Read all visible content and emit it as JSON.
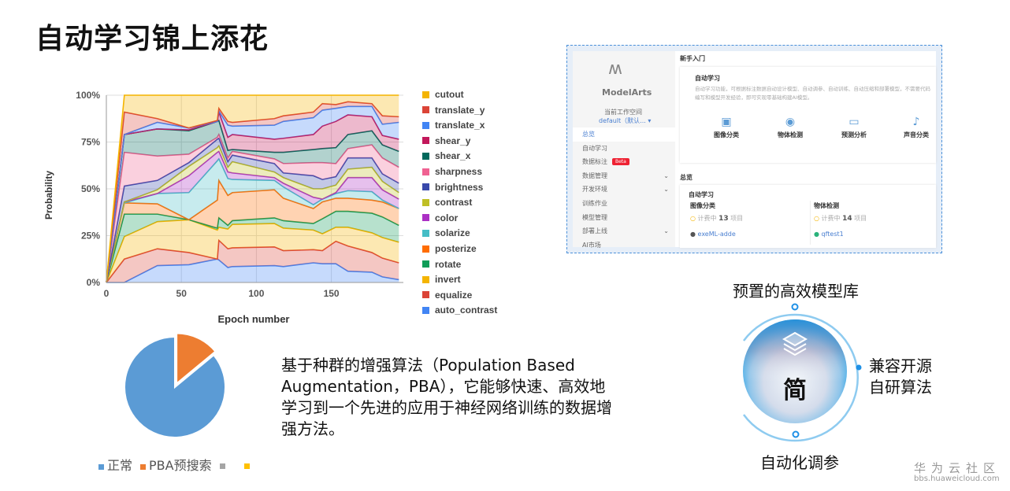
{
  "slide": {
    "title": "自动学习锦上添花"
  },
  "chart_data": {
    "type": "area",
    "stacked": true,
    "xlabel": "Epoch number",
    "ylabel": "Probability",
    "xlim": [
      0,
      198
    ],
    "ylim": [
      0,
      100
    ],
    "xticks": [
      "0",
      "50",
      "100",
      "150"
    ],
    "yticks": [
      "0%",
      "25%",
      "50%",
      "75%",
      "100%"
    ],
    "grid": true,
    "legend_position": "right",
    "x": [
      0,
      12,
      34,
      55,
      74,
      75,
      81,
      84,
      112,
      118,
      138,
      144,
      153,
      161,
      177,
      184,
      195
    ],
    "series": [
      {
        "name": "auto_contrast",
        "color": "#4285f4",
        "values": [
          0,
          0,
          9,
          9.5,
          12.5,
          12,
          8,
          8.5,
          9,
          8.5,
          10.5,
          10,
          10,
          6,
          5.5,
          3,
          1.5
        ]
      },
      {
        "name": "equalize",
        "color": "#db4437",
        "values": [
          0,
          12.5,
          9,
          6.5,
          0,
          10.5,
          10,
          10,
          10,
          8.5,
          7,
          7,
          12,
          13.5,
          10.5,
          10,
          9
        ]
      },
      {
        "name": "invert",
        "color": "#f4b400",
        "values": [
          0,
          12,
          14.5,
          17.5,
          15.5,
          7,
          10.5,
          12.5,
          12.5,
          12,
          10.5,
          9,
          7.5,
          10,
          10.5,
          11,
          11
        ]
      },
      {
        "name": "rotate",
        "color": "#0f9d58",
        "values": [
          0,
          12,
          4,
          0,
          1,
          5,
          2,
          2,
          3,
          4,
          3.5,
          8,
          8.5,
          8.5,
          10.5,
          11,
          9
        ]
      },
      {
        "name": "posterize",
        "color": "#ff6d00",
        "values": [
          0,
          6,
          5.5,
          0,
          15,
          20,
          16,
          15,
          15,
          12,
          8,
          9,
          7,
          7,
          7,
          8,
          9
        ]
      },
      {
        "name": "solarize",
        "color": "#46bdc6",
        "values": [
          0,
          0,
          5.5,
          14.5,
          21,
          11.5,
          9,
          7,
          5,
          6,
          2,
          1.5,
          2.5,
          4,
          4.5,
          1,
          0
        ]
      },
      {
        "name": "color",
        "color": "#ab30c4",
        "values": [
          0,
          0.5,
          0,
          9,
          4.5,
          4,
          3.5,
          3.5,
          1.5,
          2,
          4,
          0,
          0.5,
          7,
          7.5,
          5.5,
          5
        ]
      },
      {
        "name": "contrast",
        "color": "#bfbf26",
        "values": [
          0,
          0,
          2,
          5,
          2.5,
          3,
          2.5,
          6,
          3,
          3,
          4.5,
          5.5,
          4,
          4.5,
          5.5,
          4.5,
          3.5
        ]
      },
      {
        "name": "brightness",
        "color": "#3949ab",
        "values": [
          0,
          8.5,
          5,
          2,
          4.5,
          4,
          3,
          3.5,
          4.5,
          2.5,
          7,
          5,
          4.5,
          6,
          5,
          4,
          5
        ]
      },
      {
        "name": "sharpness",
        "color": "#f06292",
        "values": [
          0,
          18,
          13,
          4.5,
          1,
          2,
          2,
          2,
          2.5,
          5,
          7,
          9,
          7,
          5,
          7,
          8.5,
          8.5
        ]
      },
      {
        "name": "shear_x",
        "color": "#00695c",
        "values": [
          0,
          9.5,
          14.5,
          12.5,
          8.5,
          7.5,
          4,
          1,
          3.5,
          6,
          7,
          7.5,
          8.5,
          7.5,
          7.5,
          7,
          8.5
        ]
      },
      {
        "name": "shear_y",
        "color": "#c2185b",
        "values": [
          0,
          0,
          0,
          0.5,
          0,
          4.5,
          7,
          8,
          7,
          7.5,
          8,
          12,
          14,
          10.5,
          7.5,
          5,
          6.5
        ]
      },
      {
        "name": "translate_x",
        "color": "#4285f4",
        "values": [
          0,
          0,
          3.5,
          1,
          0,
          0.5,
          6.5,
          4.5,
          7.5,
          9,
          9,
          8.5,
          7,
          4.5,
          5.5,
          6,
          9
        ]
      },
      {
        "name": "translate_y",
        "color": "#db4437",
        "values": [
          0,
          12,
          2,
          0,
          0.5,
          1.5,
          2,
          2,
          3.5,
          3,
          3,
          3.5,
          2,
          2.5,
          1.5,
          4.5,
          3
        ]
      },
      {
        "name": "cutout",
        "color": "#f4b400",
        "values": [
          0,
          9,
          12.5,
          17.5,
          13.5,
          7,
          14,
          14.5,
          12.5,
          11,
          9,
          4.5,
          5,
          3.5,
          4.5,
          11,
          11.5
        ]
      }
    ]
  },
  "pie": {
    "slices": [
      {
        "label": "正常",
        "value": 86,
        "color": "#5b9bd5"
      },
      {
        "label": "PBA预搜索",
        "value": 14,
        "color": "#ed7d31"
      },
      {
        "label": "",
        "value": 0,
        "color": "#a5a5a5"
      },
      {
        "label": "",
        "value": 0,
        "color": "#ffc000"
      }
    ]
  },
  "description": "基于种群的增强算法（Population Based Augmentation，PBA），它能够快速、高效地学习到一个先进的应用于神经网络训练的数据增强方法。",
  "modelarts": {
    "brand": "ModelArts",
    "workspace_label": "当前工作空间",
    "workspace_value": "default（默认...",
    "menu": [
      {
        "label": "总览",
        "active": true
      },
      {
        "label": "自动学习"
      },
      {
        "label": "数据标注",
        "badge": "Beta"
      },
      {
        "label": "数据管理",
        "chevron": true
      },
      {
        "label": "开发环境",
        "chevron": true
      },
      {
        "label": "训练作业"
      },
      {
        "label": "模型管理"
      },
      {
        "label": "部署上线",
        "chevron": true
      },
      {
        "label": "AI市场"
      }
    ],
    "getting_started": "新手入门",
    "auto_learning_title": "自动学习",
    "auto_learning_desc": "自动学习功能，可根据标注数据自动设计模型、自动调参、自动训练、自动压缩和部署模型，不需要代码编写和模型开发经验，即可实现零基础构建AI模型。",
    "features": [
      "图像分类",
      "物体检测",
      "预测分析",
      "声音分类"
    ],
    "overview": "总览",
    "overview_section": "自动学习",
    "stats": [
      {
        "title": "图像分类",
        "status": "计费中",
        "count": "13",
        "unit": "项目",
        "project": "exeML-adde"
      },
      {
        "title": "物体检测",
        "status": "计费中",
        "count": "14",
        "unit": "项目",
        "project": "qftest1"
      }
    ]
  },
  "circle": {
    "center": "简",
    "top": "预置的高效模型库",
    "right_line1": "兼容开源",
    "right_line2": "自研算法",
    "bottom": "自动化调参",
    "accent": "#1e90e6"
  },
  "watermark": {
    "name": "华为云社区",
    "url": "bbs.huaweicloud.com"
  }
}
